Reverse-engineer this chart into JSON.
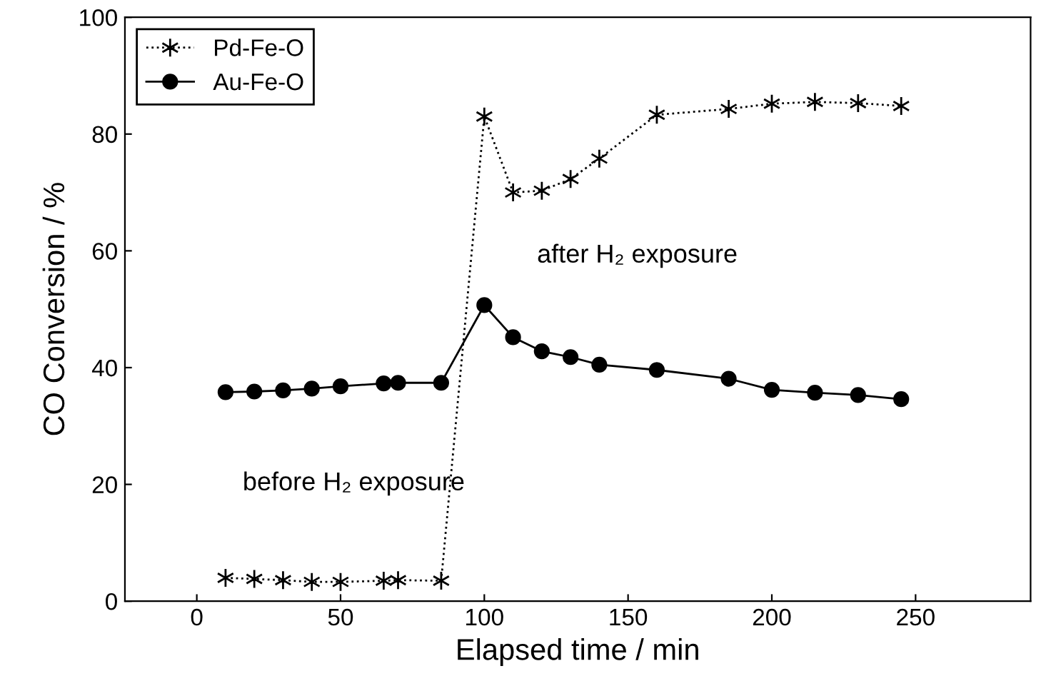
{
  "chart_data": {
    "type": "line",
    "xlabel": "Elapsed time / min",
    "ylabel": "CO Conversion / %",
    "xlim": [
      -25,
      290
    ],
    "xticks": [
      0,
      50,
      100,
      150,
      200,
      250
    ],
    "ylim": [
      0,
      100
    ],
    "yticks": [
      0,
      20,
      40,
      60,
      80,
      100
    ],
    "grid": false,
    "legend": "top left",
    "series": [
      {
        "name": "Pd-Fe-O",
        "color": "#000000",
        "marker": "cross",
        "line_style": "dotted",
        "x": [
          10,
          20,
          30,
          40,
          50,
          65,
          70,
          85,
          100,
          110,
          120,
          130,
          140,
          160,
          185,
          200,
          215,
          230,
          245
        ],
        "values": [
          4.0,
          3.8,
          3.6,
          3.3,
          3.3,
          3.5,
          3.6,
          3.5,
          83,
          70,
          70.3,
          72.3,
          75.8,
          83.3,
          84.3,
          85.2,
          85.5,
          85.3,
          84.8
        ]
      },
      {
        "name": "Au-Fe-O",
        "color": "#000000",
        "marker": "circle",
        "line_style": "solid",
        "x": [
          10,
          20,
          30,
          40,
          50,
          65,
          70,
          85,
          100,
          110,
          120,
          130,
          140,
          160,
          185,
          200,
          215,
          230,
          245
        ],
        "values": [
          35.8,
          35.9,
          36.1,
          36.4,
          36.8,
          37.3,
          37.4,
          37.4,
          50.7,
          45.2,
          42.8,
          41.8,
          40.5,
          39.6,
          38.1,
          36.2,
          35.7,
          35.3,
          34.6
        ]
      }
    ],
    "annotations": [
      "after H₂ exposure",
      "before H₂ exposure"
    ]
  }
}
